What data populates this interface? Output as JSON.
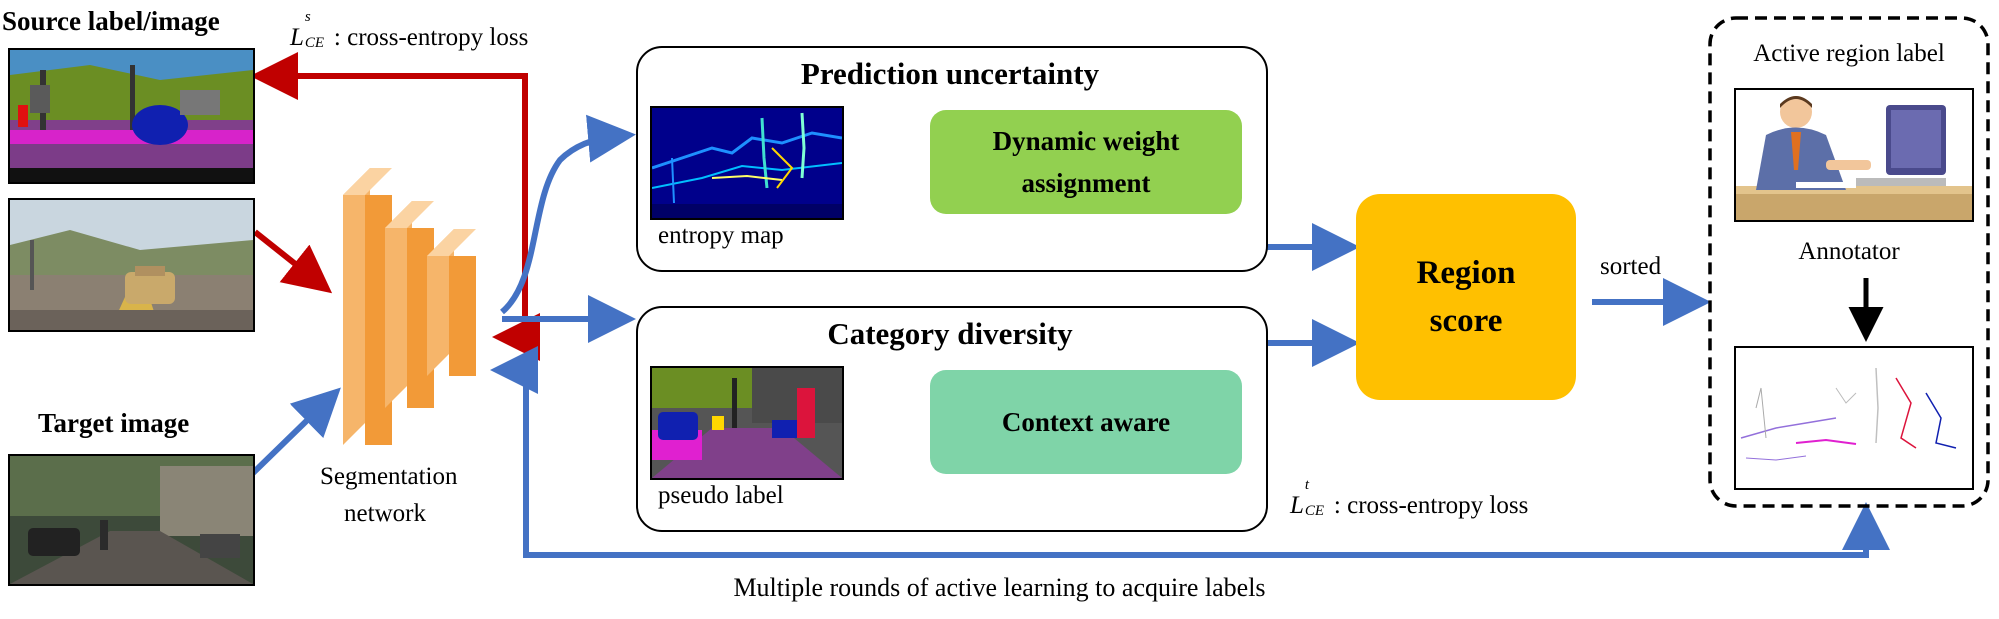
{
  "source": {
    "title": "Source label/image"
  },
  "target": {
    "title": "Target image"
  },
  "network": {
    "label_line1": "Segmentation",
    "label_line2": "network"
  },
  "loss_source": {
    "symbol": "L",
    "sup": "s",
    "sub": "CE",
    "text": ": cross-entropy loss"
  },
  "loss_target": {
    "symbol": "L",
    "sup": "t",
    "sub": "CE",
    "text": ": cross-entropy loss"
  },
  "uncertainty": {
    "title": "Prediction uncertainty",
    "map_caption": "entropy map",
    "box_line1": "Dynamic weight",
    "box_line2": "assignment"
  },
  "diversity": {
    "title": "Category diversity",
    "map_caption": "pseudo label",
    "box": "Context aware"
  },
  "region": {
    "line1": "Region",
    "line2": "score"
  },
  "sorted": "sorted",
  "active": {
    "title": "Active region label",
    "annotator": "Annotator"
  },
  "footer": "Multiple rounds of active learning to acquire labels",
  "colors": {
    "red_arrow": "#c00000",
    "blue_arrow": "#4472c4",
    "orange_network": "#f29a38",
    "green_box": "#92d050",
    "teal_box": "#7fd4a8",
    "region_box": "#ffc000"
  }
}
